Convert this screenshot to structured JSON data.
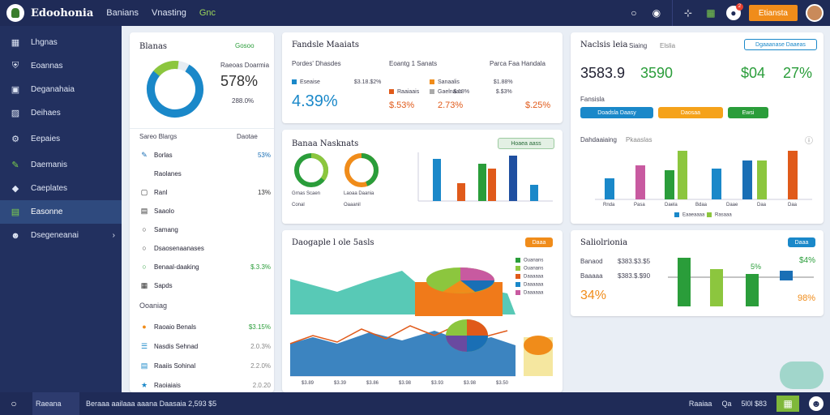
{
  "top": {
    "brand": "Edoohonia",
    "nav": [
      "Banians",
      "Vnasting",
      "Gnc"
    ],
    "orange_btn": "Etiansta",
    "badge": "2"
  },
  "sidebar": {
    "items": [
      {
        "label": "Lhgnas",
        "icon": "grid-icon"
      },
      {
        "label": "Eoannas",
        "icon": "shield-icon"
      },
      {
        "label": "Deganahaia",
        "icon": "box-icon"
      },
      {
        "label": "Deihaes",
        "icon": "lock-icon"
      },
      {
        "label": "Eepaies",
        "icon": "settings-icon"
      },
      {
        "label": "Daemanis",
        "icon": "pen-icon"
      },
      {
        "label": "Caeplates",
        "icon": "tag-icon"
      },
      {
        "label": "Easonne",
        "icon": "chart-icon"
      },
      {
        "label": "Dsegeneanai",
        "icon": "user-icon"
      }
    ]
  },
  "panel1": {
    "title": "Blanas",
    "tag": "Gosoo",
    "donut_label": "Raeoas Doarmia",
    "donut_value": "578%",
    "donut_sub": "288.0%",
    "section1": "Sareo Blargs",
    "section1_right": "Daotae",
    "rows": [
      {
        "label": "Borlas",
        "value": "53%",
        "icon": "edit-icon",
        "color": "#1a6fb5"
      },
      {
        "label": "Raolanes",
        "value": "",
        "icon": "",
        "color": "#333"
      },
      {
        "label": "Ranl",
        "value": "13%",
        "icon": "square-icon",
        "color": "#333"
      },
      {
        "label": "Saaolo",
        "value": "",
        "icon": "doc-icon",
        "color": "#333"
      },
      {
        "label": "Samang",
        "value": "",
        "icon": "circle-icon",
        "color": "#333"
      },
      {
        "label": "Dsaosenaanases",
        "value": "",
        "icon": "circle-icon",
        "color": "#333"
      },
      {
        "label": "Benaal-daaking",
        "value": "$.3.3%",
        "icon": "circle-icon",
        "color": "#2a9d3a"
      },
      {
        "label": "Sapds",
        "value": "",
        "icon": "h-icon",
        "color": "#333"
      }
    ],
    "section2": "Ooaniag",
    "rows2": [
      {
        "label": "Raoaio Benals",
        "value": "$3.15%",
        "icon": "coin-icon",
        "color": "#2a9d3a"
      },
      {
        "label": "Nasdis Sehnad",
        "value": "2.0.3%",
        "icon": "lines-icon",
        "color": "#888"
      },
      {
        "label": "Raaiis Sohinal",
        "value": "2.2.0%",
        "icon": "chart-icon",
        "color": "#888"
      },
      {
        "label": "Raoiaiais",
        "value": "2.0.20",
        "icon": "star-icon",
        "color": "#888"
      }
    ]
  },
  "panel2": {
    "title": "Fandsle Maaiats",
    "sub1": "Pordes' Dhasdes",
    "sub2": "Eoantg 1 Sanats",
    "sub3": "Parca Faa Handala",
    "big": "4.39%",
    "items": [
      {
        "label": "Eseaise",
        "value": "$3.18.$2%",
        "color": "#1a88c9"
      },
      {
        "label": "Sanaalis",
        "value": "$1.88%",
        "color": "#f08c1a"
      },
      {
        "label": "Gaelnaas",
        "value": "$.$3%",
        "color": "#aaa"
      },
      {
        "label": "Raaiaais",
        "value": "$.18%",
        "color": "#e05a1a"
      }
    ],
    "v1": "$.53%",
    "v2": "2.73%",
    "v3": "$.25%"
  },
  "panel3": {
    "title": "Banaa Nasknats",
    "pill": "Hoaea aass",
    "legend": [
      "Grnas Scaen",
      "Laoaa Daania",
      "Conal",
      "Oaaanil"
    ]
  },
  "panel4": {
    "title": "Daogaple l ole 5asls",
    "pill": "Daaa",
    "legend": [
      "Ouanans",
      "Ouanans",
      "Daaaaaa",
      "Daaaaaa",
      "Daaaaaa"
    ],
    "xlabels": [
      "$3.89",
      "$3.39",
      "$3.86",
      "$3.98",
      "$3.93",
      "$3.98",
      "$3.50"
    ]
  },
  "panel5": {
    "title": "Naclsis leia",
    "title2": "Siaing",
    "title3": "Elslia",
    "btn": "Dgaaanase Daaeas",
    "big1": "3583.9",
    "big2": "3590",
    "big3": "$04",
    "big4": "27%",
    "sub": "Fansisla",
    "buttons": [
      {
        "label": "Doadsla Daasy",
        "color": "#1a88c9"
      },
      {
        "label": "Daosaa",
        "color": "#f5a21a"
      },
      {
        "label": "Ewsi",
        "color": "#2a9d3a"
      }
    ],
    "chart_title": "Dahdaaiaing",
    "chart_sub": "Pkaaslas",
    "xlabels": [
      "Rnda",
      "Pasa",
      "Daela",
      "Bdaa",
      "Daae",
      "Daa",
      "Daa"
    ],
    "legend": [
      "Eaaeaaaa",
      "Rasaaa"
    ]
  },
  "panel6": {
    "title": "Saliolrionia",
    "pill": "Daaa",
    "row1_label": "Banaod",
    "row1_value": "$383.$3.$5",
    "row2_label": "Baaaaa",
    "row2_value": "$383.$.$90",
    "big": "34%",
    "v1": "5%",
    "v2": "$4%",
    "v3": "98%"
  },
  "bottom": {
    "label": "Raeana",
    "status": "Beraaa aailaaa aaana Daasaia 2,593 $5",
    "right": [
      "Raaiaa",
      "Qa",
      "5l0l $83"
    ]
  }
}
